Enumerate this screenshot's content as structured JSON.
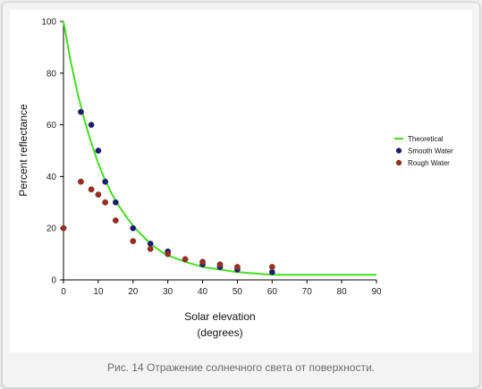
{
  "caption": "Рис. 14 Отражение солнечного света от поверхности.",
  "chart_data": {
    "type": "scatter",
    "xlabel": "Solar elevation",
    "xlabel_sub": "(degrees)",
    "ylabel": "Percent reflectance",
    "xlim": [
      0,
      90
    ],
    "ylim": [
      0,
      100
    ],
    "xticks": [
      0,
      10,
      20,
      30,
      40,
      50,
      60,
      70,
      80,
      90
    ],
    "yticks": [
      0,
      20,
      40,
      60,
      80,
      100
    ],
    "grid": false,
    "legend_position": "right",
    "series": [
      {
        "name": "Theoretical",
        "kind": "line",
        "color": "#44dd22",
        "x": [
          0,
          2,
          4,
          6,
          8,
          10,
          12,
          14,
          16,
          18,
          20,
          22,
          25,
          28,
          30,
          35,
          40,
          45,
          50,
          55,
          60,
          70,
          80,
          90
        ],
        "y": [
          100,
          85,
          72.5,
          62,
          53,
          45,
          38.5,
          33,
          28.5,
          24.5,
          21,
          18,
          14,
          11,
          9.5,
          7,
          5,
          4,
          3,
          2.5,
          2,
          2,
          2,
          2
        ]
      },
      {
        "name": "Smooth Water",
        "kind": "points",
        "color": "#1a1a7a",
        "x": [
          5,
          8,
          10,
          12,
          15,
          20,
          25,
          30,
          40,
          45,
          50,
          60
        ],
        "y": [
          65,
          60,
          50,
          38,
          30,
          20,
          14,
          11,
          6,
          5,
          4,
          3
        ]
      },
      {
        "name": "Rough Water",
        "kind": "points",
        "color": "#a02a1a",
        "x": [
          0,
          5,
          8,
          10,
          12,
          15,
          20,
          25,
          30,
          35,
          40,
          45,
          50,
          60
        ],
        "y": [
          20,
          38,
          35,
          33,
          30,
          23,
          15,
          12,
          10,
          8,
          7,
          6,
          5,
          5
        ]
      }
    ]
  }
}
